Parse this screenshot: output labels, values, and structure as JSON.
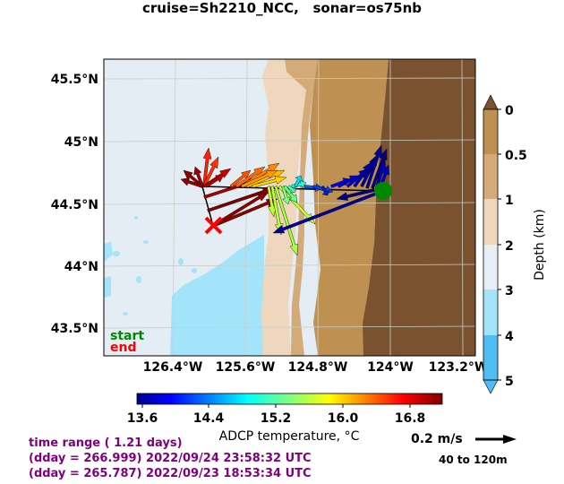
{
  "title": "cruise=Sh2210_NCC,   sonar=os75nb",
  "map": {
    "lat_labels": [
      "45.5°N",
      "45°N",
      "44.5°N",
      "44°N",
      "43.5°N"
    ],
    "lon_labels": [
      "126.4°W",
      "125.6°W",
      "124.8°W",
      "124°W",
      "123.2°W"
    ],
    "start_label": "start",
    "end_label": "end",
    "colors": {
      "ocean": "#e3edf3",
      "deep_water": "#a3e4fb",
      "start": "#008800",
      "end": "#ff0000"
    }
  },
  "depth_colorbar": {
    "label": "Depth (km)",
    "ticks": [
      "0",
      "0.5",
      "1",
      "2",
      "3",
      "4",
      "5"
    ],
    "colors": [
      "#7b5230",
      "#be9152",
      "#d4aa78",
      "#efd7be",
      "#e5eff5",
      "#a3e4fb",
      "#4fbdf1"
    ]
  },
  "temp_colorbar": {
    "label": "ADCP temperature, °C",
    "ticks": [
      "13.6",
      "14.4",
      "15.2",
      "16.0",
      "16.8"
    ],
    "range": [
      13.6,
      17.0
    ],
    "colormap": "jet"
  },
  "scale": {
    "label": "0.2 m/s",
    "depth_range": "40 to 120m"
  },
  "info": {
    "line1": "time range ( 1.21 days)",
    "line2": "(dday = 266.999) 2022/09/24 23:58:32 UTC",
    "line3": "(dday = 265.787) 2022/09/23 18:53:34 UTC"
  }
}
